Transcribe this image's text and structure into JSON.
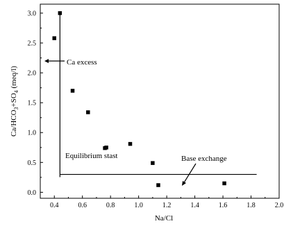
{
  "chart_data": {
    "type": "scatter",
    "title": "",
    "xlabel": "Na/Cl",
    "ylabel_parts": [
      "Ca/HCO",
      "3",
      "+SO",
      "4",
      " (meq/l)"
    ],
    "xlim": [
      0.3,
      2.0
    ],
    "ylim": [
      -0.1,
      3.15
    ],
    "xticks": [
      0.4,
      0.6,
      0.8,
      1.0,
      1.2,
      1.4,
      1.6,
      1.8,
      2.0
    ],
    "xtick_labels": [
      "0.4",
      "0.6",
      "0.8",
      "1.0",
      "1.2",
      "1.4",
      "1.6",
      "1.8",
      "2.0"
    ],
    "yticks": [
      0.0,
      0.5,
      1.0,
      1.5,
      2.0,
      2.5,
      3.0
    ],
    "ytick_labels": [
      "0.0",
      "0.5",
      "1.0",
      "1.5",
      "2.0",
      "2.5",
      "3.0"
    ],
    "grid": false,
    "points": [
      {
        "x": 0.4,
        "y": 2.58
      },
      {
        "x": 0.44,
        "y": 3.0
      },
      {
        "x": 0.53,
        "y": 1.7
      },
      {
        "x": 0.64,
        "y": 1.34
      },
      {
        "x": 0.76,
        "y": 0.74
      },
      {
        "x": 0.77,
        "y": 0.75
      },
      {
        "x": 0.94,
        "y": 0.81
      },
      {
        "x": 1.1,
        "y": 0.49
      },
      {
        "x": 1.14,
        "y": 0.12
      },
      {
        "x": 1.61,
        "y": 0.15
      }
    ],
    "annotations": {
      "ca_excess": "Ca excess",
      "equilibrium": "Equilibrium stast",
      "base_exchange": "Base exchange"
    },
    "guide_lines": {
      "vertical": {
        "x": 0.44,
        "y_from": 0.3,
        "y_to": 3.0
      },
      "horizontal": {
        "y": 0.3,
        "x_from": 0.44,
        "x_to": 1.84
      }
    }
  }
}
